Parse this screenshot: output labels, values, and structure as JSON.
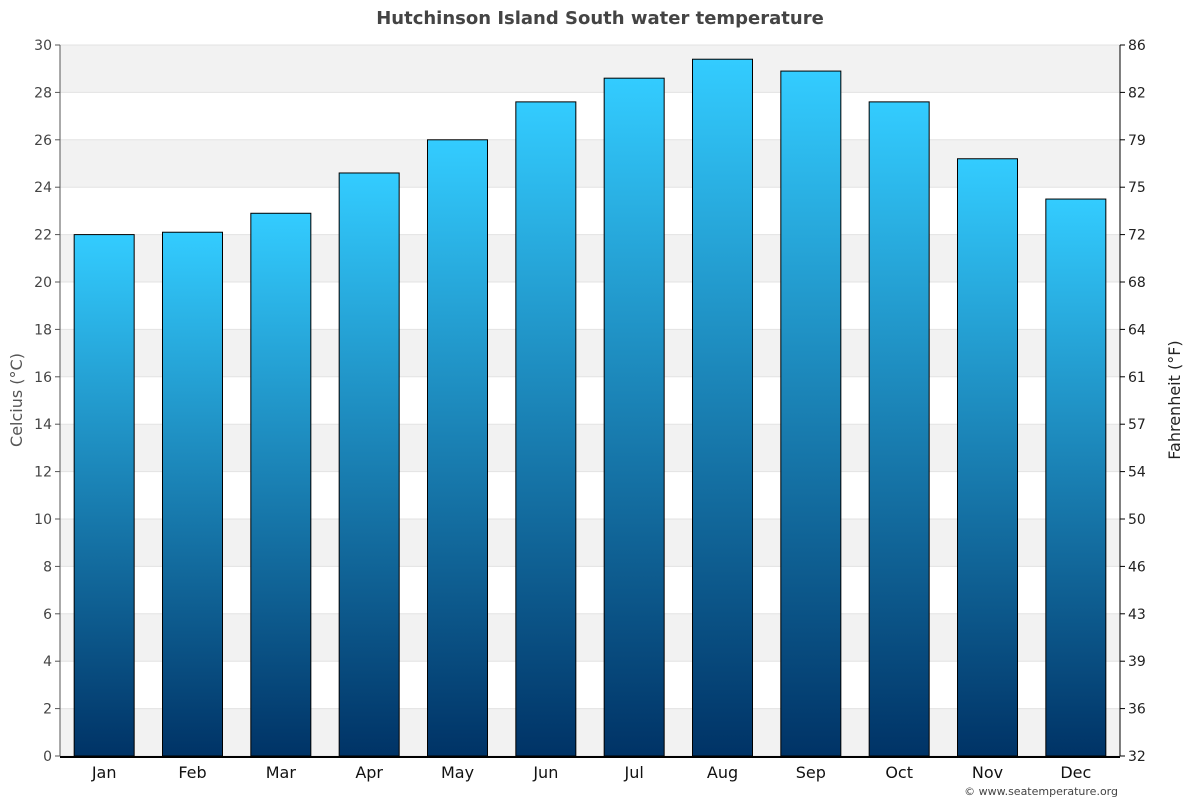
{
  "chart_data": {
    "type": "bar",
    "title": "Hutchinson Island South water temperature",
    "ylabel_left": "Celcius (°C)",
    "ylabel_right": "Fahrenheit (°F)",
    "categories": [
      "Jan",
      "Feb",
      "Mar",
      "Apr",
      "May",
      "Jun",
      "Jul",
      "Aug",
      "Sep",
      "Oct",
      "Nov",
      "Dec"
    ],
    "series": [
      {
        "values": [
          22.0,
          22.1,
          22.9,
          24.6,
          26.0,
          27.6,
          28.6,
          29.4,
          28.9,
          27.6,
          25.2,
          23.5
        ]
      }
    ],
    "ylim": [
      0,
      30
    ],
    "yticks_left": [
      0,
      2,
      4,
      6,
      8,
      10,
      12,
      14,
      16,
      18,
      20,
      22,
      24,
      26,
      28,
      30
    ],
    "yticks_right": [
      "32",
      "36",
      "39",
      "43",
      "46",
      "50",
      "54",
      "57",
      "61",
      "64",
      "68",
      "72",
      "75",
      "79",
      "82",
      "86"
    ],
    "grid": true,
    "legend": "none",
    "colors": {
      "bar_top": "#33ccff",
      "bar_bottom": "#003366",
      "band": "#f2f2f2"
    }
  },
  "credit": "© www.seatemperature.org"
}
